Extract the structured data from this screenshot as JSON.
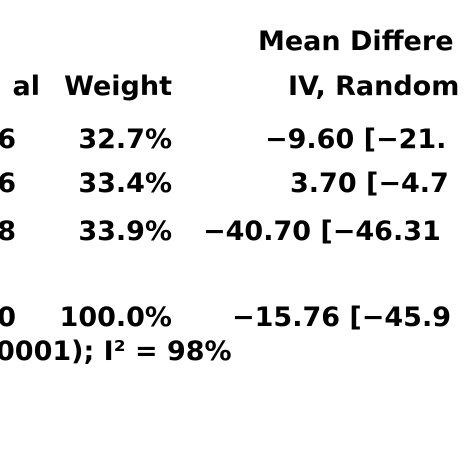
{
  "header": {
    "line1": "Mean Differe",
    "line2": [
      "al",
      "Weight",
      "IV, Random"
    ]
  },
  "table": {
    "rows": [
      [
        "6",
        "32.7%",
        "−9.60 [−21."
      ],
      [
        "6",
        "33.4%",
        "3.70 [−4.7"
      ],
      [
        "8",
        "33.9%",
        "−40.70 [−46.31"
      ]
    ]
  },
  "total": [
    "0",
    "100.0%",
    "−15.76 [−45.9"
  ],
  "footer": "0001); I² = 98%"
}
